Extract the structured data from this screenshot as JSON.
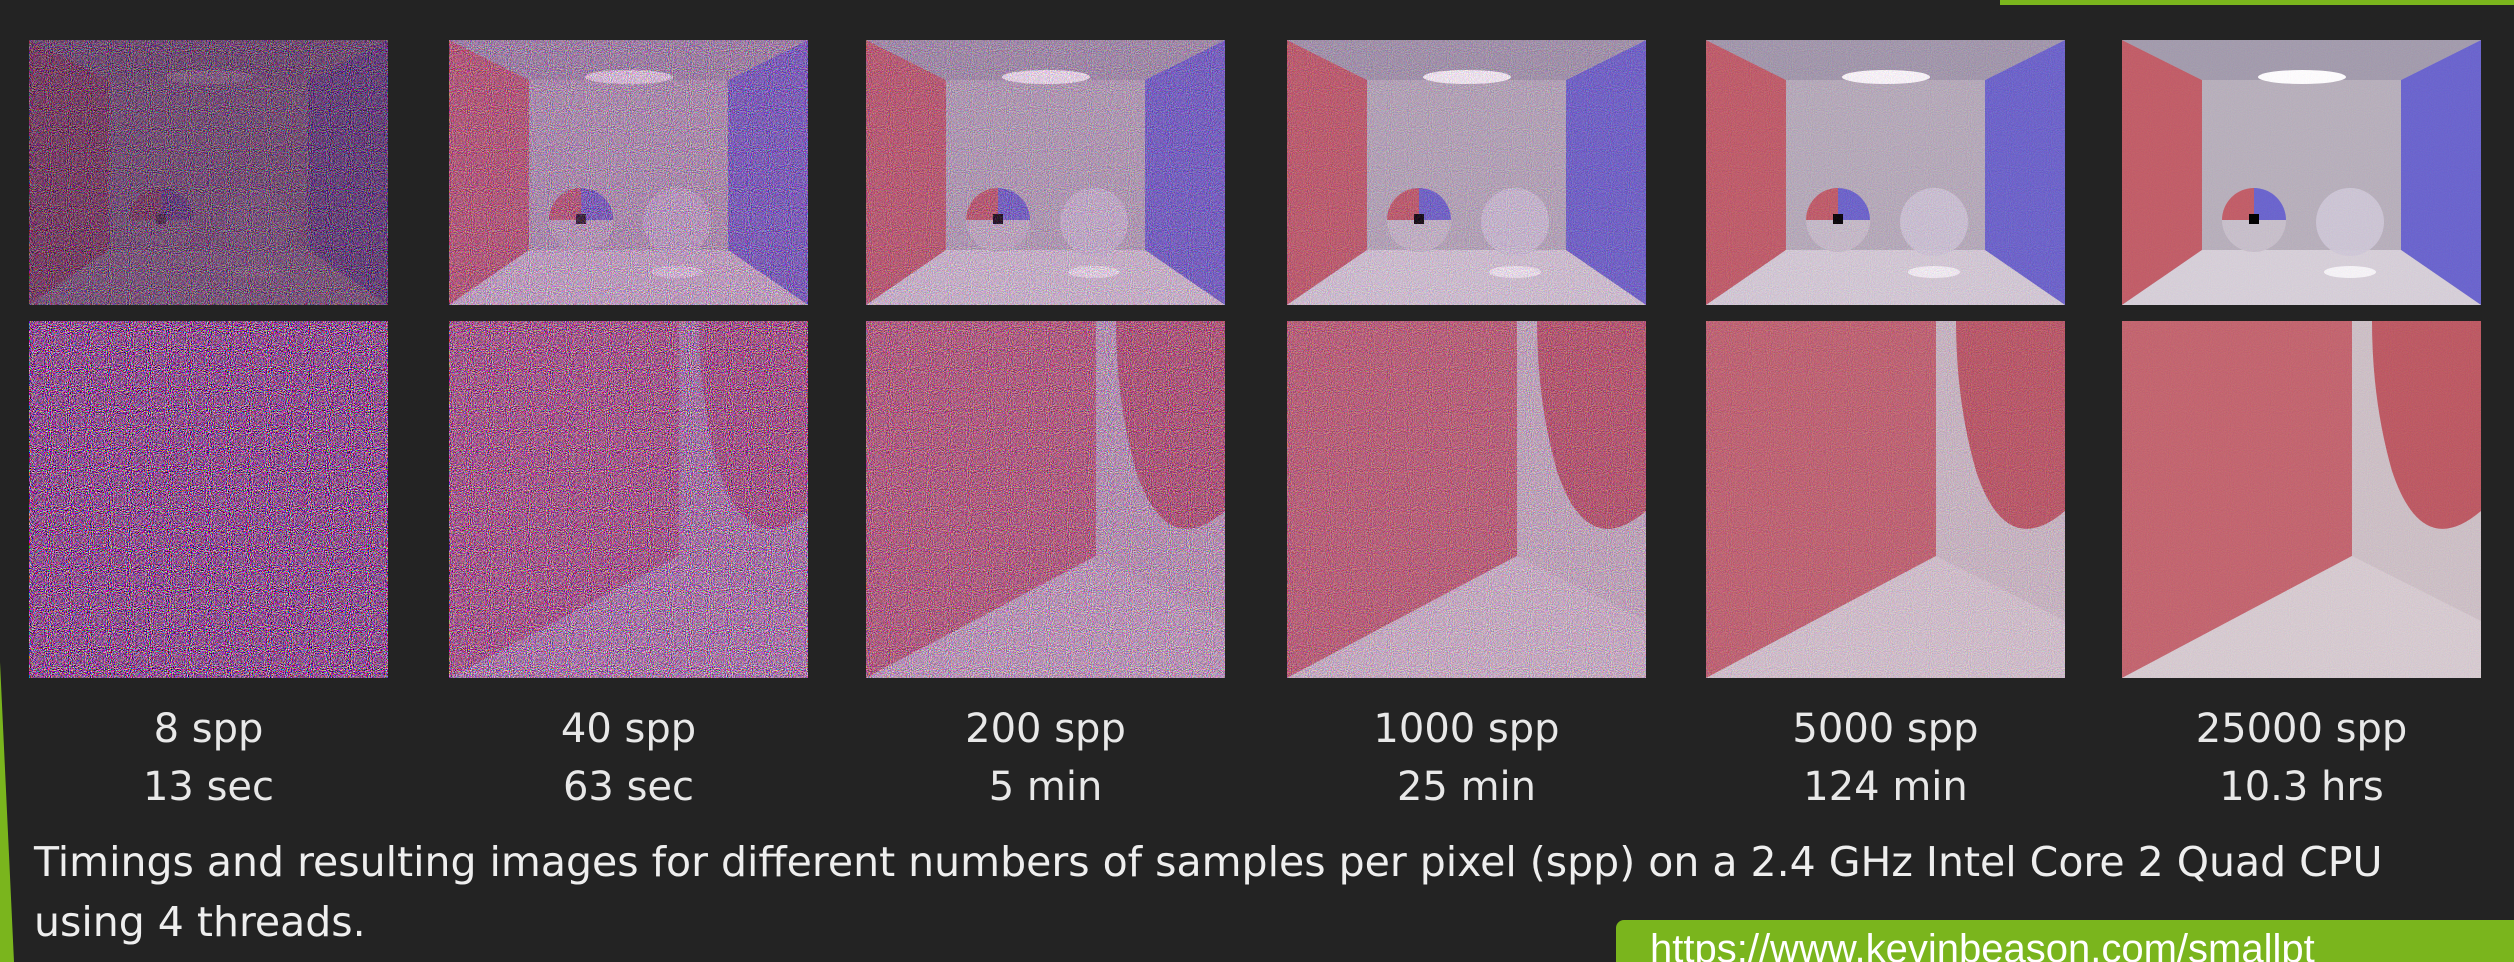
{
  "columns": [
    {
      "spp": "8 spp",
      "time": "13 sec"
    },
    {
      "spp": "40 spp",
      "time": "63 sec"
    },
    {
      "spp": "200 spp",
      "time": "5 min"
    },
    {
      "spp": "1000 spp",
      "time": "25 min"
    },
    {
      "spp": "5000 spp",
      "time": "124 min"
    },
    {
      "spp": "25000 spp",
      "time": "10.3 hrs"
    }
  ],
  "caption": "Timings and resulting images for different numbers of samples per pixel (spp) on a 2.4 GHz Intel Core 2 Quad CPU using 4 threads.",
  "link": "https://www.kevinbeason.com/smallpt"
}
